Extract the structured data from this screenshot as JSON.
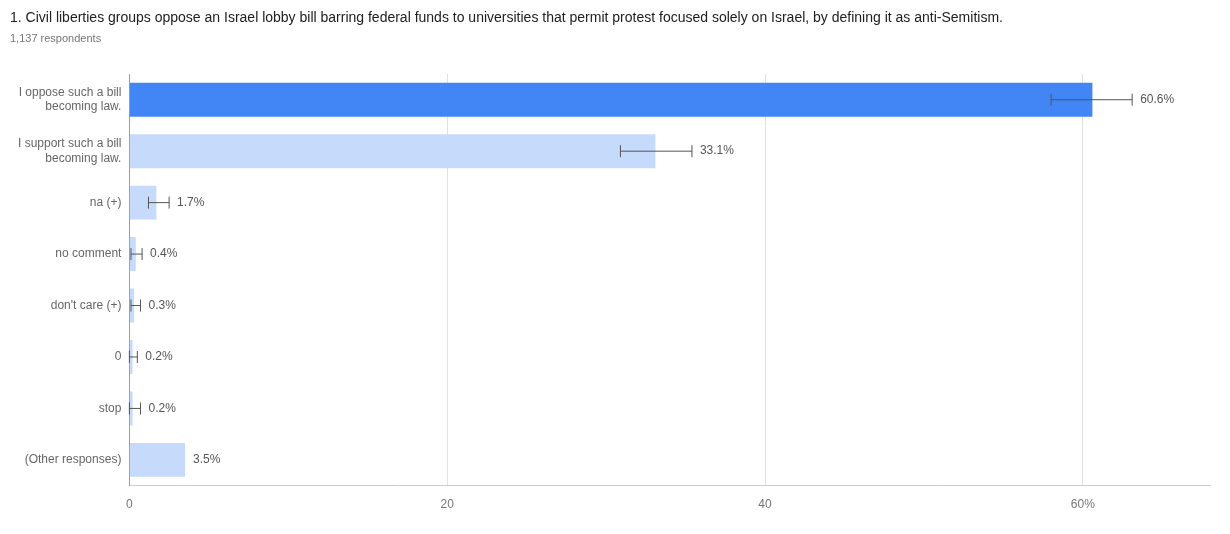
{
  "chart_data": {
    "type": "bar",
    "orientation": "horizontal",
    "title": "1. Civil liberties groups oppose an Israel lobby bill barring federal funds to universities that permit protest focused solely on Israel, by defining it as anti-Semitism.",
    "subtitle": "1,137 respondents",
    "categories": [
      "I oppose such a bill becoming law.",
      "I support such a bill becoming law.",
      "na (+)",
      "no comment",
      "don't care (+)",
      "0",
      "stop",
      "(Other responses)"
    ],
    "values": [
      60.6,
      33.1,
      1.7,
      0.4,
      0.3,
      0.2,
      0.2,
      3.5
    ],
    "value_labels": [
      "60.6%",
      "33.1%",
      "1.7%",
      "0.4%",
      "0.3%",
      "0.2%",
      "0.2%",
      "3.5%"
    ],
    "error_bars": [
      [
        58.0,
        63.1
      ],
      [
        30.9,
        35.4
      ],
      [
        1.2,
        2.5
      ],
      [
        0.1,
        0.8
      ],
      [
        0.1,
        0.7
      ],
      [
        0.0,
        0.5
      ],
      [
        0.0,
        0.7
      ],
      null
    ],
    "colors": [
      "#4285f4",
      "#c6dafc",
      "#c6dafc",
      "#c6dafc",
      "#c6dafc",
      "#c6dafc",
      "#c6dafc",
      "#c6dafc"
    ],
    "xlim": [
      0,
      68
    ],
    "xticks": [
      0,
      20,
      40,
      {
        "value": 60,
        "label": "60%"
      }
    ],
    "grid": true,
    "data_labels": true
  }
}
